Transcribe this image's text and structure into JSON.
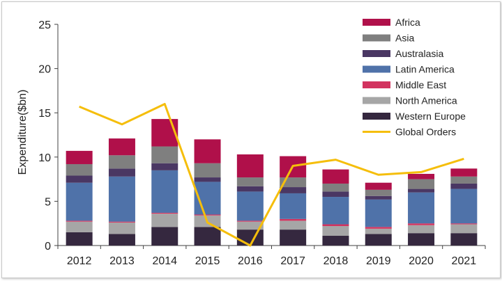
{
  "chart_data": {
    "type": "bar",
    "stacked": true,
    "categories": [
      "2012",
      "2013",
      "2014",
      "2015",
      "2016",
      "2017",
      "2018",
      "2019",
      "2020",
      "2021"
    ],
    "ylabel": "Expenditure($bn)",
    "xlabel": "",
    "ylim": [
      0,
      25
    ],
    "yticks": [
      0,
      5,
      10,
      15,
      20,
      25
    ],
    "grid": false,
    "legend_position": "top-right",
    "series": [
      {
        "name": "Western Europe",
        "color": "#35283f",
        "values": [
          1.5,
          1.3,
          2.1,
          2.1,
          1.8,
          1.8,
          1.1,
          1.3,
          1.4,
          1.4
        ]
      },
      {
        "name": "North America",
        "color": "#a6a6a6",
        "values": [
          1.2,
          1.3,
          1.5,
          1.3,
          0.9,
          1.0,
          1.1,
          0.6,
          0.9,
          1.0
        ]
      },
      {
        "name": "Middle East",
        "color": "#d2335f",
        "values": [
          0.1,
          0.1,
          0.1,
          0.1,
          0.1,
          0.2,
          0.2,
          0.2,
          0.2,
          0.1
        ]
      },
      {
        "name": "Latin America",
        "color": "#4f72a9",
        "values": [
          4.3,
          5.1,
          4.8,
          3.7,
          3.3,
          2.9,
          3.1,
          3.1,
          3.5,
          3.9
        ]
      },
      {
        "name": "Australasia",
        "color": "#4a3763",
        "values": [
          0.8,
          0.9,
          0.8,
          0.5,
          0.6,
          0.7,
          0.6,
          0.4,
          0.4,
          0.6
        ]
      },
      {
        "name": "Asia",
        "color": "#7f7f7f",
        "values": [
          1.3,
          1.5,
          1.9,
          1.6,
          1.0,
          1.1,
          0.9,
          0.7,
          1.1,
          0.8
        ]
      },
      {
        "name": "Africa",
        "color": "#b0104a",
        "values": [
          1.5,
          1.9,
          3.1,
          2.7,
          2.6,
          2.4,
          1.6,
          0.8,
          0.6,
          0.9
        ]
      }
    ],
    "line_series": {
      "name": "Global Orders",
      "color": "#f5be0b",
      "values": [
        15.7,
        13.7,
        16.0,
        2.6,
        0.0,
        9.0,
        9.7,
        8.0,
        8.3,
        9.8
      ]
    },
    "legend": [
      "Africa",
      "Asia",
      "Australasia",
      "Latin America",
      "Middle East",
      "North America",
      "Western Europe",
      "Global Orders"
    ]
  }
}
